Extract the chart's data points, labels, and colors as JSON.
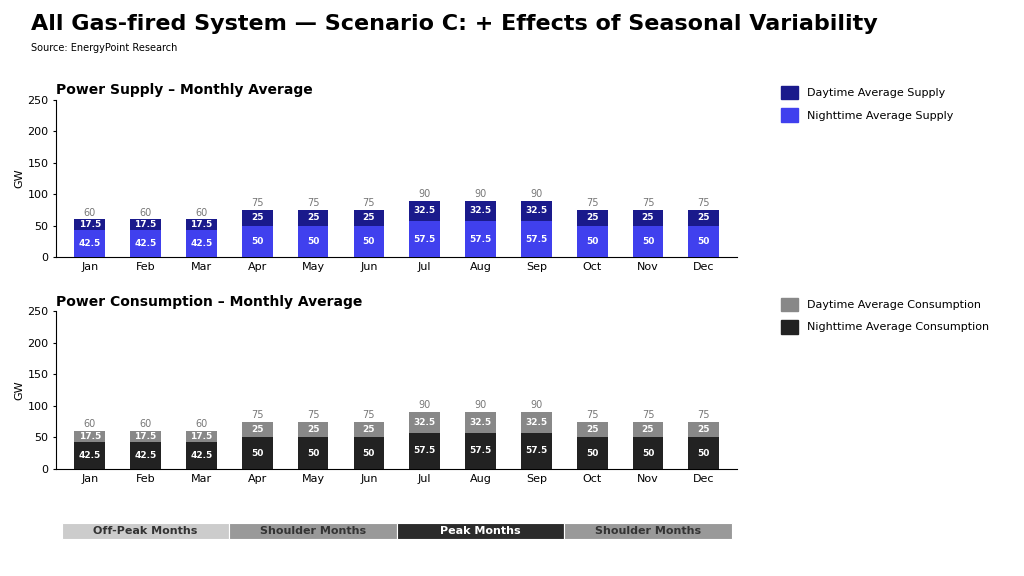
{
  "title": "All Gas-fired System — Scenario C: + Effects of Seasonal Variability",
  "source": "Source: EnergyPoint Research",
  "months": [
    "Jan",
    "Feb",
    "Mar",
    "Apr",
    "May",
    "Jun",
    "Jul",
    "Aug",
    "Sep",
    "Oct",
    "Nov",
    "Dec"
  ],
  "totals": [
    60,
    60,
    60,
    75,
    75,
    75,
    90,
    90,
    90,
    75,
    75,
    75
  ],
  "nighttime_supply": [
    42.5,
    42.5,
    42.5,
    50,
    50,
    50,
    57.5,
    57.5,
    57.5,
    50,
    50,
    50
  ],
  "daytime_supply": [
    17.5,
    17.5,
    17.5,
    25,
    25,
    25,
    32.5,
    32.5,
    32.5,
    25,
    25,
    25
  ],
  "nighttime_consumption": [
    42.5,
    42.5,
    42.5,
    50,
    50,
    50,
    57.5,
    57.5,
    57.5,
    50,
    50,
    50
  ],
  "daytime_consumption": [
    17.5,
    17.5,
    17.5,
    25,
    25,
    25,
    32.5,
    32.5,
    32.5,
    25,
    25,
    25
  ],
  "supply_daytime_color": "#1a1a8c",
  "supply_nighttime_color": "#4040ee",
  "consumption_daytime_color": "#888888",
  "consumption_nighttime_color": "#222222",
  "supply_chart_title": "Power Supply – Monthly Average",
  "consumption_chart_title": "Power Consumption – Monthly Average",
  "ylabel": "GW",
  "ylim": [
    0,
    250
  ],
  "yticks": [
    0,
    50,
    100,
    150,
    200,
    250
  ],
  "legend_supply": [
    "Daytime Average Supply",
    "Nighttime Average Supply"
  ],
  "legend_consumption": [
    "Daytime Average Consumption",
    "Nighttime Average Consumption"
  ],
  "season_labels": [
    "Off-Peak Months",
    "Shoulder Months",
    "Peak Months",
    "Shoulder Months"
  ],
  "season_ranges": [
    [
      0,
      3
    ],
    [
      3,
      6
    ],
    [
      6,
      9
    ],
    [
      9,
      12
    ]
  ],
  "season_colors": [
    "#cccccc",
    "#999999",
    "#2b2b2b",
    "#999999"
  ],
  "season_text_colors": [
    "#333333",
    "#333333",
    "#ffffff",
    "#333333"
  ],
  "background_color": "#ffffff",
  "total_label_color": "#777777",
  "bar_text_color": "#ffffff",
  "bar_width": 0.55,
  "title_fontsize": 16,
  "source_fontsize": 7,
  "chart_title_fontsize": 10,
  "tick_fontsize": 8,
  "bar_label_fontsize": 6.5,
  "total_label_fontsize": 7,
  "legend_fontsize": 8,
  "season_fontsize": 8
}
